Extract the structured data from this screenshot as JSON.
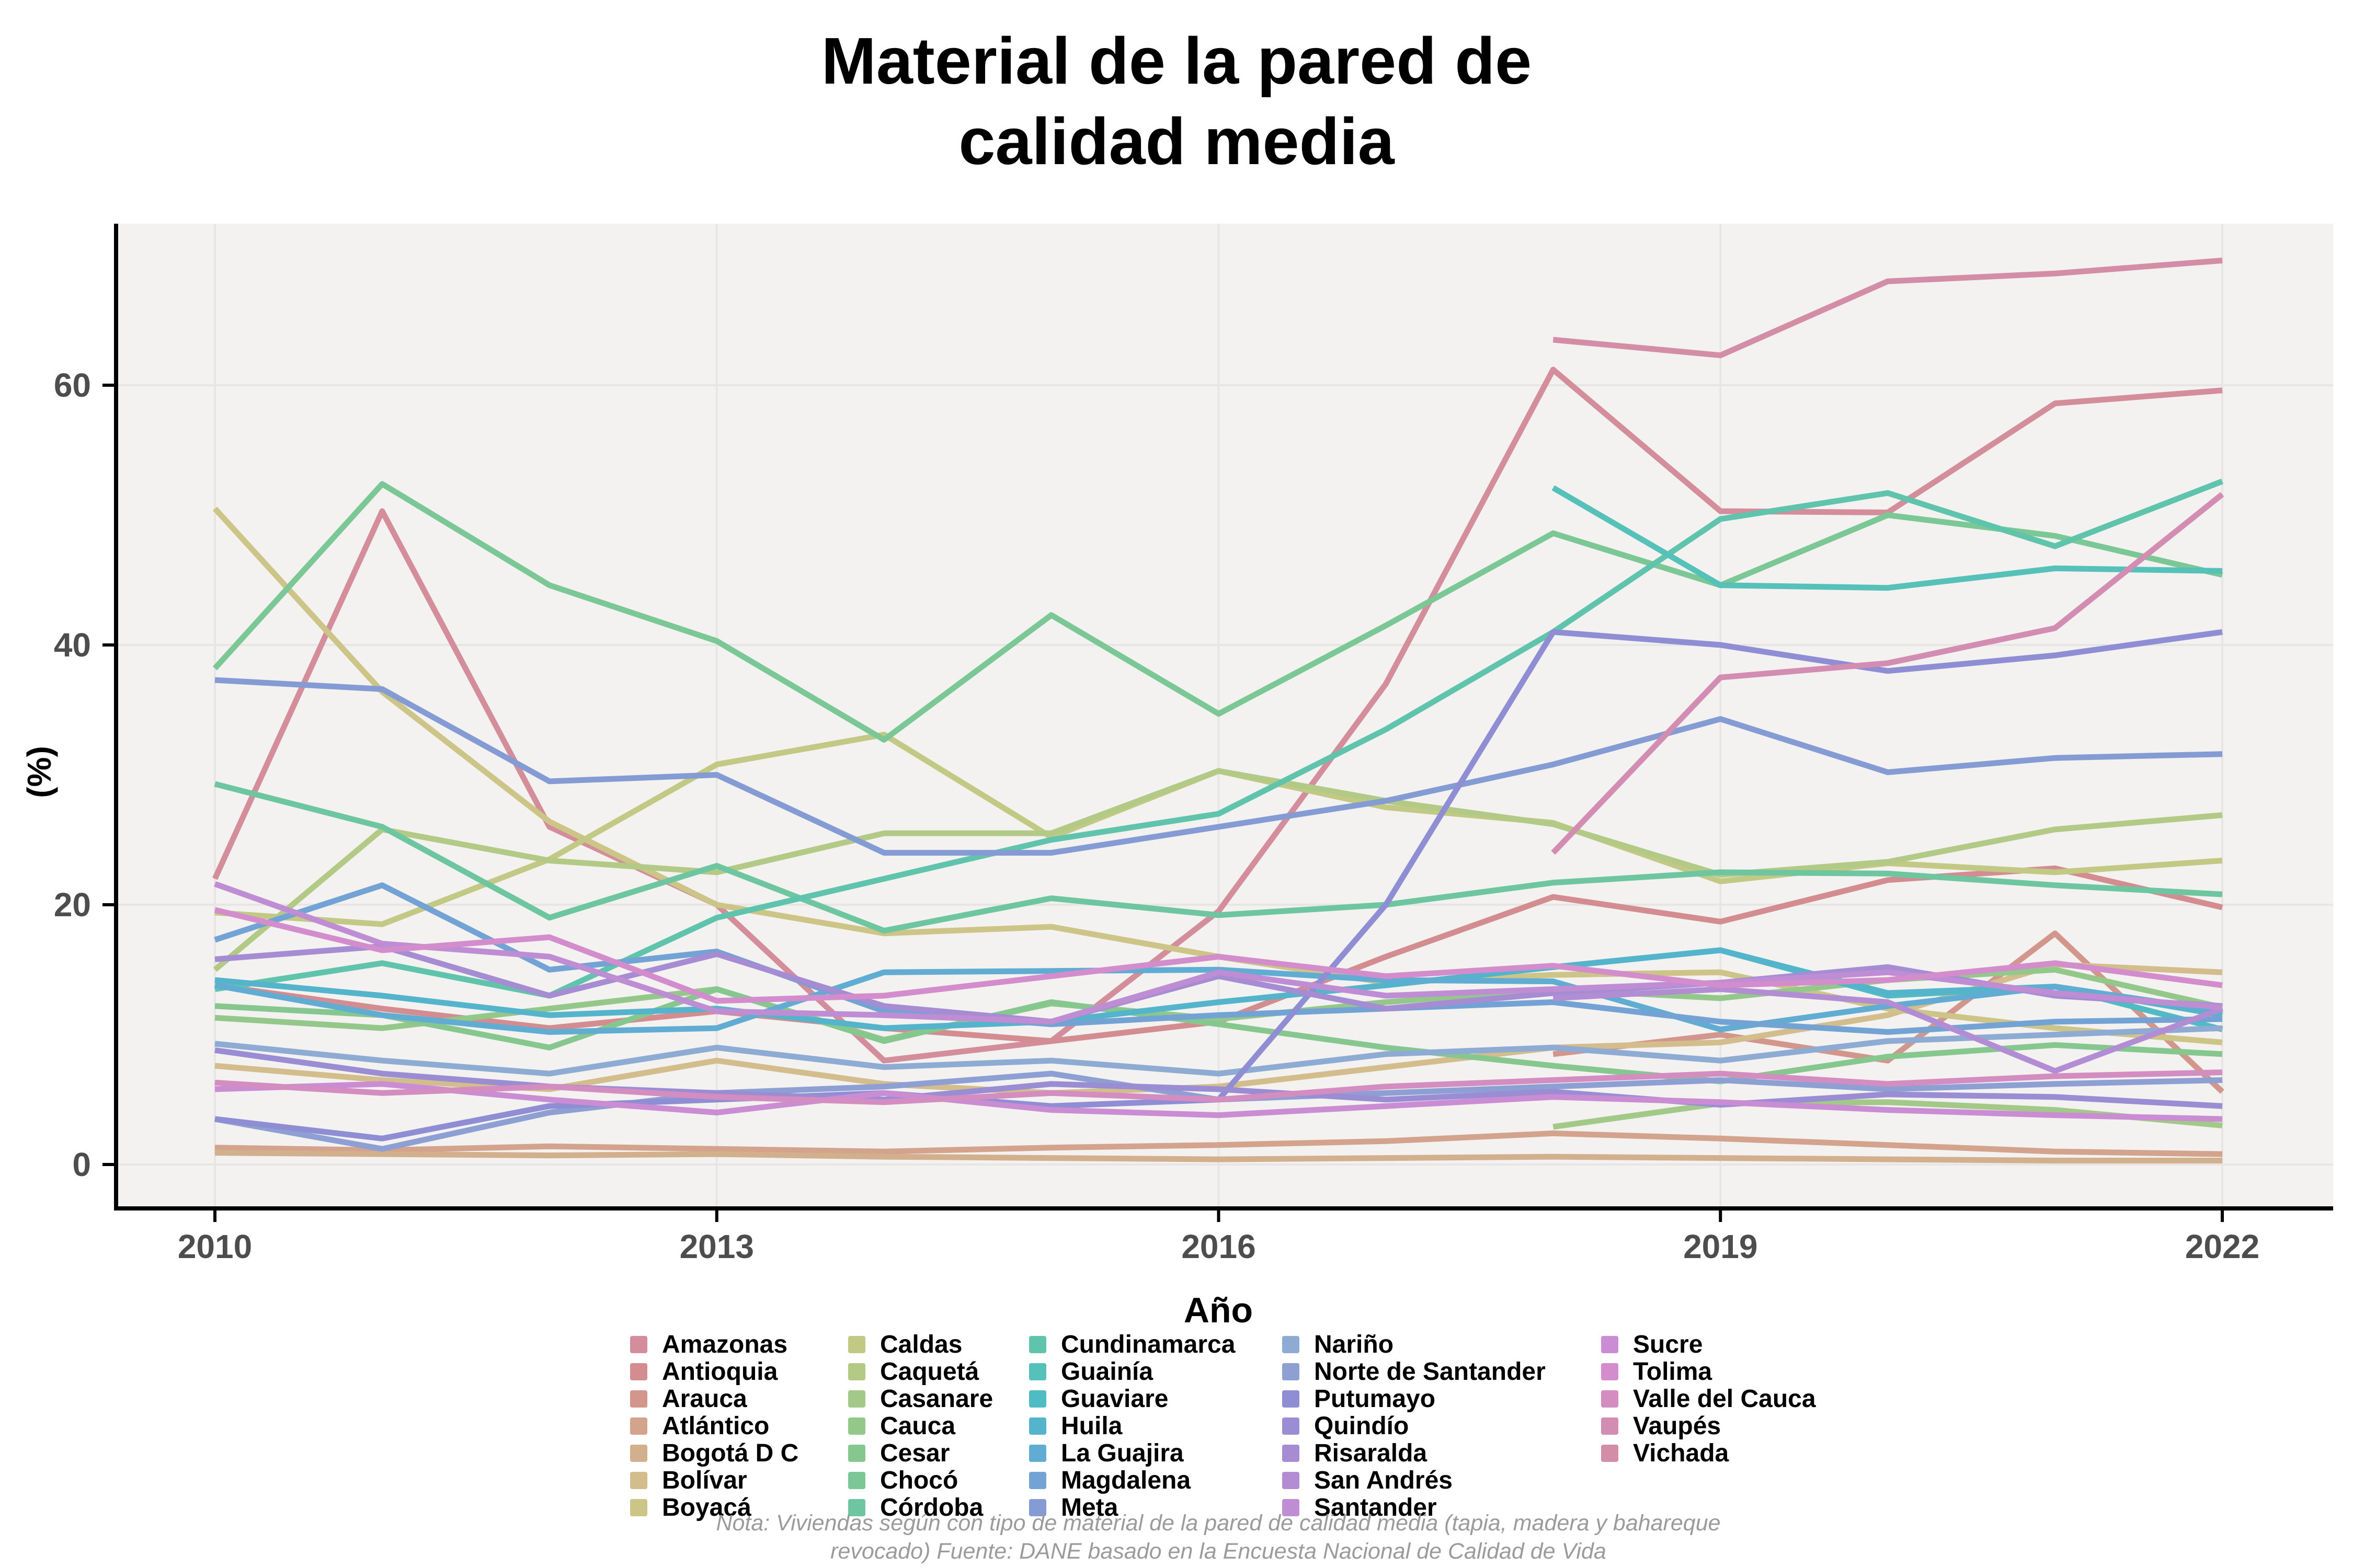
{
  "title": {
    "line1": "Material de la pared de",
    "line2": "calidad media"
  },
  "axes": {
    "x_label": "Año",
    "y_label": "(%)",
    "x_ticks": [
      "2010",
      "2013",
      "2016",
      "2019",
      "2022"
    ],
    "y_ticks": [
      "0",
      "20",
      "40",
      "60"
    ]
  },
  "note": {
    "line1": "Nota: Viviendas según con tipo de material de la pared de calidad media (tapia, madera y bahareque",
    "line2": "revocado) Fuente: DANE basado en la Encuesta Nacional de Calidad de Vida"
  },
  "colors": {
    "panel_background": "#f3f2f0",
    "grid": "#e7e6e4",
    "axis": "#000000",
    "tick_text": "#4d4d4d"
  },
  "chart_data": {
    "type": "line",
    "title": "Material de la pared de calidad media",
    "xlabel": "Año",
    "ylabel": "(%)",
    "x": [
      2010,
      2011,
      2012,
      2013,
      2014,
      2015,
      2016,
      2017,
      2018,
      2019,
      2020,
      2021,
      2022
    ],
    "x_ticks": [
      2010,
      2013,
      2016,
      2019,
      2022
    ],
    "y_ticks": [
      0,
      20,
      40,
      60
    ],
    "xlim": [
      2009.4,
      2022.75
    ],
    "ylim": [
      -3.3,
      73.5
    ],
    "grid": true,
    "legend_position": "bottom",
    "series": [
      {
        "name": "Amazonas",
        "color": "#d38d9b",
        "values": [
          22.0,
          50.3,
          26.0,
          20.0,
          8.0,
          9.5,
          19.5,
          37.0,
          61.2,
          50.3,
          50.2,
          58.6,
          59.6
        ]
      },
      {
        "name": "Antioquia",
        "color": "#d38d90",
        "values": [
          13.8,
          12.0,
          10.5,
          11.8,
          10.5,
          9.5,
          11.0,
          16.0,
          20.6,
          18.7,
          21.9,
          22.8,
          19.8
        ]
      },
      {
        "name": "Arauca",
        "color": "#d3968d",
        "values": [
          null,
          null,
          null,
          null,
          null,
          null,
          null,
          null,
          8.5,
          10.0,
          8.0,
          17.8,
          5.6
        ]
      },
      {
        "name": "Atlántico",
        "color": "#d3a38d",
        "values": [
          1.3,
          1.1,
          1.4,
          1.2,
          1.0,
          1.3,
          1.5,
          1.8,
          2.4,
          2.0,
          1.5,
          1.0,
          0.8
        ]
      },
      {
        "name": "Bogotá D C",
        "color": "#d3b08d",
        "values": [
          0.9,
          0.8,
          0.7,
          0.8,
          0.6,
          0.5,
          0.4,
          0.5,
          0.6,
          0.5,
          0.4,
          0.3,
          0.3
        ]
      },
      {
        "name": "Bolívar",
        "color": "#d3bd8d",
        "values": [
          7.6,
          6.5,
          5.8,
          8.0,
          6.2,
          5.5,
          6.0,
          7.5,
          9.0,
          9.4,
          11.5,
          15.4,
          14.8
        ]
      },
      {
        "name": "Boyacá",
        "color": "#cdc487",
        "values": [
          50.5,
          36.4,
          26.4,
          20.0,
          17.8,
          18.3,
          16.0,
          14.0,
          14.6,
          14.8,
          12.0,
          10.5,
          9.4
        ]
      },
      {
        "name": "Caldas",
        "color": "#c2c984",
        "values": [
          19.4,
          18.5,
          23.5,
          30.8,
          33.1,
          25.2,
          30.3,
          27.5,
          26.3,
          21.8,
          23.2,
          22.5,
          23.4
        ]
      },
      {
        "name": "Caquetá",
        "color": "#b3c986",
        "values": [
          15.0,
          25.8,
          23.4,
          22.5,
          25.5,
          25.5,
          30.3,
          28.0,
          26.2,
          22.3,
          23.3,
          25.8,
          26.9
        ]
      },
      {
        "name": "Casanare",
        "color": "#a3c988",
        "values": [
          null,
          null,
          null,
          null,
          null,
          null,
          null,
          null,
          2.9,
          4.7,
          4.8,
          4.2,
          3.0
        ]
      },
      {
        "name": "Cauca",
        "color": "#94c88b",
        "values": [
          11.3,
          10.5,
          12.0,
          13.5,
          9.6,
          12.4,
          11.2,
          12.5,
          13.5,
          12.8,
          14.2,
          15.0,
          12.1
        ]
      },
      {
        "name": "Cesar",
        "color": "#86c78f",
        "values": [
          12.2,
          11.5,
          9.0,
          13.5,
          9.5,
          12.5,
          10.8,
          9.0,
          7.6,
          6.4,
          8.3,
          9.2,
          8.5
        ]
      },
      {
        "name": "Chocó",
        "color": "#7bc795",
        "values": [
          38.2,
          52.4,
          44.6,
          40.3,
          32.7,
          42.3,
          34.7,
          41.5,
          48.6,
          44.6,
          50.0,
          48.4,
          45.4
        ]
      },
      {
        "name": "Córdoba",
        "color": "#6dc69f",
        "values": [
          29.3,
          26.0,
          19.0,
          23.0,
          18.0,
          20.5,
          19.2,
          20.0,
          21.7,
          22.5,
          22.4,
          21.5,
          20.8
        ]
      },
      {
        "name": "Cundinamarca",
        "color": "#60c4ac",
        "values": [
          13.5,
          15.5,
          13.0,
          19.0,
          22.0,
          25.0,
          27.0,
          33.5,
          41.0,
          49.7,
          51.7,
          47.6,
          52.6
        ]
      },
      {
        "name": "Guainía",
        "color": "#55c1b8",
        "values": [
          null,
          null,
          null,
          null,
          null,
          null,
          null,
          null,
          52.1,
          44.6,
          44.4,
          45.9,
          45.7
        ]
      },
      {
        "name": "Guaviare",
        "color": "#4fbbc3",
        "values": [
          null,
          null,
          null,
          null,
          null,
          null,
          null,
          null,
          15.2,
          16.5,
          13.0,
          13.7,
          10.4
        ]
      },
      {
        "name": "Huila",
        "color": "#54b4cb",
        "values": [
          14.2,
          13.0,
          11.5,
          12.0,
          10.5,
          11.0,
          12.5,
          13.8,
          15.2,
          16.5,
          13.2,
          13.7,
          11.5
        ]
      },
      {
        "name": "La Guajira",
        "color": "#60acd2",
        "values": [
          13.8,
          11.5,
          10.2,
          10.5,
          14.8,
          14.9,
          15.0,
          14.2,
          14.1,
          10.4,
          12.2,
          13.7,
          11.8
        ]
      },
      {
        "name": "Magdalena",
        "color": "#72a3d4",
        "values": [
          17.3,
          21.5,
          15.0,
          16.4,
          11.8,
          10.8,
          11.5,
          12.0,
          12.5,
          11.0,
          10.2,
          11.0,
          11.2
        ]
      },
      {
        "name": "Meta",
        "color": "#859bd4",
        "values": [
          37.3,
          36.6,
          29.5,
          30.0,
          24.0,
          24.0,
          26.0,
          28.0,
          30.8,
          34.3,
          30.2,
          31.3,
          31.6
        ]
      },
      {
        "name": "Nariño",
        "color": "#8dabd3",
        "values": [
          9.3,
          8.0,
          7.0,
          9.0,
          7.5,
          8.0,
          7.0,
          8.5,
          9.0,
          8.0,
          9.5,
          10.0,
          10.5
        ]
      },
      {
        "name": "Norte de Santander",
        "color": "#8d9fd3",
        "values": [
          3.5,
          1.2,
          4.0,
          5.5,
          6.0,
          7.0,
          5.0,
          5.5,
          6.0,
          6.5,
          5.8,
          6.2,
          6.5
        ]
      },
      {
        "name": "Putumayo",
        "color": "#8f8dd3",
        "values": [
          3.5,
          2.0,
          4.5,
          5.0,
          5.5,
          4.5,
          5.0,
          20.0,
          41.0,
          40.0,
          38.0,
          39.2,
          41.0
        ]
      },
      {
        "name": "Quindío",
        "color": "#9a8dd3",
        "values": [
          8.8,
          7.0,
          6.0,
          5.5,
          5.0,
          6.2,
          5.8,
          5.0,
          5.6,
          4.6,
          5.4,
          5.2,
          4.5
        ]
      },
      {
        "name": "Risaralda",
        "color": "#a68dd3",
        "values": [
          15.8,
          16.8,
          13.0,
          16.2,
          12.2,
          11.0,
          14.5,
          12.0,
          13.2,
          14.0,
          15.2,
          13.0,
          12.2
        ]
      },
      {
        "name": "San Andrés",
        "color": "#b38dd3",
        "values": [
          null,
          null,
          null,
          null,
          null,
          null,
          null,
          null,
          12.8,
          13.5,
          12.5,
          7.2,
          12.0
        ]
      },
      {
        "name": "Santander",
        "color": "#bf8dd3",
        "values": [
          21.6,
          17.0,
          16.0,
          11.8,
          11.5,
          11.0,
          14.8,
          13.0,
          13.5,
          14.0,
          14.8,
          13.2,
          12.1
        ]
      },
      {
        "name": "Sucre",
        "color": "#ca8dd3",
        "values": [
          5.8,
          6.2,
          5.0,
          4.0,
          5.5,
          4.2,
          3.8,
          4.5,
          5.2,
          4.8,
          4.2,
          3.8,
          3.5
        ]
      },
      {
        "name": "Tolima",
        "color": "#d38dcd",
        "values": [
          19.6,
          16.5,
          17.5,
          12.6,
          13.0,
          14.5,
          16.0,
          14.5,
          15.3,
          13.8,
          14.2,
          15.5,
          13.8
        ]
      },
      {
        "name": "Valle del Cauca",
        "color": "#d38dc0",
        "values": [
          6.3,
          5.5,
          6.0,
          5.2,
          4.8,
          5.5,
          5.0,
          6.0,
          6.5,
          7.0,
          6.2,
          6.8,
          7.1
        ]
      },
      {
        "name": "Vaupés",
        "color": "#d38db3",
        "values": [
          null,
          null,
          null,
          null,
          null,
          null,
          null,
          null,
          24.0,
          37.5,
          38.6,
          41.3,
          51.6
        ]
      },
      {
        "name": "Vichada",
        "color": "#d38da7",
        "values": [
          null,
          null,
          null,
          null,
          null,
          null,
          null,
          null,
          63.5,
          62.3,
          68.0,
          68.6,
          69.6
        ]
      }
    ]
  },
  "legend": {
    "columns": 5,
    "rows_per_column": 7
  }
}
